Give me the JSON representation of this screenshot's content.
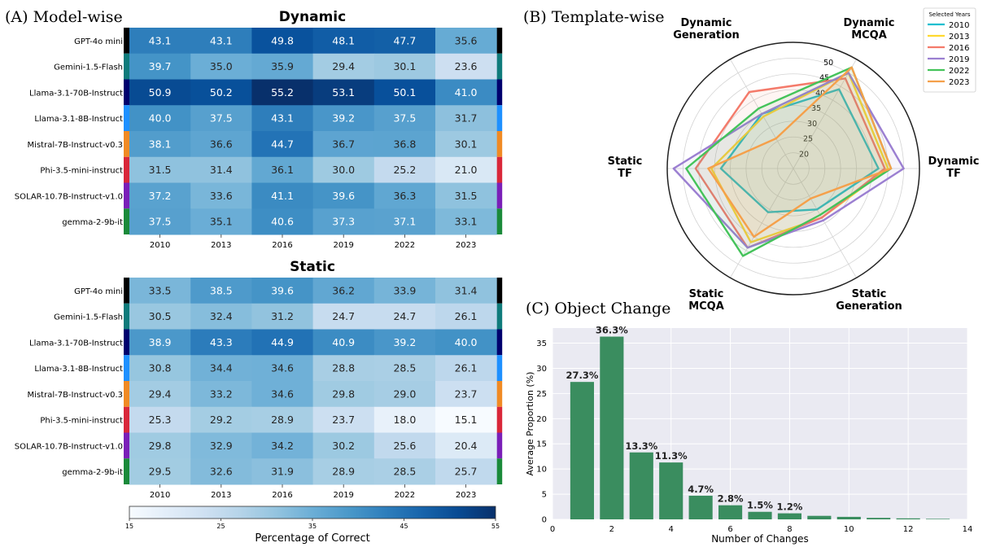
{
  "panels": {
    "a_title": "(A) Model-wise",
    "b_title": "(B) Template-wise",
    "c_title": "(C) Object Change"
  },
  "colors": {
    "model_colors": [
      "#000000",
      "#0f7b7b",
      "#00006e",
      "#1e90ff",
      "#f08a24",
      "#d9273a",
      "#7a1fb8",
      "#1a8a3a"
    ],
    "year_colors": [
      "#17becf",
      "#ffd92f",
      "#f47a6a",
      "#9b7fd1",
      "#44c35a",
      "#f5a04a"
    ],
    "bar_color": "#3a8d5f"
  },
  "chart_data": [
    {
      "type": "heatmap",
      "id": "dynamic",
      "title": "Dynamic",
      "rows": [
        "GPT-4o mini",
        "Gemini-1.5-Flash",
        "Llama-3.1-70B-Instruct",
        "Llama-3.1-8B-Instruct",
        "Mistral-7B-Instruct-v0.3",
        "Phi-3.5-mini-instruct",
        "SOLAR-10.7B-Instruct-v1.0",
        "gemma-2-9b-it"
      ],
      "columns": [
        "2010",
        "2013",
        "2016",
        "2019",
        "2022",
        "2023"
      ],
      "values": [
        [
          "43.1",
          "43.1",
          "49.8",
          "48.1",
          "47.7",
          "35.6"
        ],
        [
          "39.7",
          "35.0",
          "35.9",
          "29.4",
          "30.1",
          "23.6"
        ],
        [
          "50.9",
          "50.2",
          "55.2",
          "53.1",
          "50.1",
          "41.0"
        ],
        [
          "40.0",
          "37.5",
          "43.1",
          "39.2",
          "37.5",
          "31.7"
        ],
        [
          "38.1",
          "36.6",
          "44.7",
          "36.7",
          "36.8",
          "30.1"
        ],
        [
          "31.5",
          "31.4",
          "36.1",
          "30.0",
          "25.2",
          "21.0"
        ],
        [
          "37.2",
          "33.6",
          "41.1",
          "39.6",
          "36.3",
          "31.5"
        ],
        [
          "37.5",
          "35.1",
          "40.6",
          "37.3",
          "37.1",
          "33.1"
        ]
      ]
    },
    {
      "type": "heatmap",
      "id": "static",
      "title": "Static",
      "rows": [
        "GPT-4o mini",
        "Gemini-1.5-Flash",
        "Llama-3.1-70B-Instruct",
        "Llama-3.1-8B-Instruct",
        "Mistral-7B-Instruct-v0.3",
        "Phi-3.5-mini-instruct",
        "SOLAR-10.7B-Instruct-v1.0",
        "gemma-2-9b-it"
      ],
      "columns": [
        "2010",
        "2013",
        "2016",
        "2019",
        "2022",
        "2023"
      ],
      "values": [
        [
          "33.5",
          "38.5",
          "39.6",
          "36.2",
          "33.9",
          "31.4"
        ],
        [
          "30.5",
          "32.4",
          "31.2",
          "24.7",
          "24.7",
          "26.1"
        ],
        [
          "38.9",
          "43.3",
          "44.9",
          "40.9",
          "39.2",
          "40.0"
        ],
        [
          "30.8",
          "34.4",
          "34.6",
          "28.8",
          "28.5",
          "26.1"
        ],
        [
          "29.4",
          "33.2",
          "34.6",
          "29.8",
          "29.0",
          "23.7"
        ],
        [
          "25.3",
          "29.2",
          "28.9",
          "23.7",
          "18.0",
          "15.1"
        ],
        [
          "29.8",
          "32.9",
          "34.2",
          "30.2",
          "25.6",
          "20.4"
        ],
        [
          "29.5",
          "32.6",
          "31.9",
          "28.9",
          "28.5",
          "25.7"
        ]
      ]
    },
    {
      "type": "colorbar",
      "id": "colorbar",
      "label": "Percentage of Correct",
      "range": [
        15,
        55
      ],
      "ticks": [
        "15",
        "25",
        "35",
        "45",
        "55"
      ]
    },
    {
      "type": "radar",
      "id": "template",
      "axes": [
        {
          "line1": "Dynamic",
          "line2": "TF"
        },
        {
          "line1": "Dynamic",
          "line2": "MCQA"
        },
        {
          "line1": "Dynamic",
          "line2": "Generation"
        },
        {
          "line1": "Static",
          "line2": "TF"
        },
        {
          "line1": "Static",
          "line2": "MCQA"
        },
        {
          "line1": "Static",
          "line2": "Generation"
        }
      ],
      "r_range": [
        15,
        55
      ],
      "r_ticks": [
        "20",
        "25",
        "30",
        "35",
        "40",
        "45",
        "50"
      ],
      "legend_title": "Selected Years",
      "series": [
        {
          "name": "2010",
          "values": [
            42,
            44,
            35,
            38,
            31,
            30
          ]
        },
        {
          "name": "2013",
          "values": [
            45,
            50,
            34,
            41,
            42,
            33
          ]
        },
        {
          "name": "2016",
          "values": [
            44,
            48,
            43,
            46,
            44,
            33
          ]
        },
        {
          "name": "2019",
          "values": [
            50,
            50,
            35,
            53,
            44,
            34
          ]
        },
        {
          "name": "2022",
          "values": [
            46,
            52,
            37,
            49,
            47,
            32
          ]
        },
        {
          "name": "2023",
          "values": [
            46,
            52,
            26,
            42,
            40,
            26
          ]
        }
      ]
    },
    {
      "type": "bar",
      "id": "object_change",
      "xlabel": "Number of Changes",
      "ylabel": "Average Proportion (%)",
      "xlim": [
        0,
        14
      ],
      "ylim": [
        0,
        38
      ],
      "xticks": [
        "0",
        "2",
        "4",
        "6",
        "8",
        "10",
        "12",
        "14"
      ],
      "yticks": [
        "0",
        "5",
        "10",
        "15",
        "20",
        "25",
        "30",
        "35"
      ],
      "x": [
        1,
        2,
        3,
        4,
        5,
        6,
        7,
        8,
        9,
        10,
        11,
        12,
        13
      ],
      "values": [
        27.3,
        36.3,
        13.3,
        11.3,
        4.7,
        2.8,
        1.5,
        1.2,
        0.7,
        0.5,
        0.3,
        0.2,
        0.1
      ],
      "labels": [
        "27.3%",
        "36.3%",
        "13.3%",
        "11.3%",
        "4.7%",
        "2.8%",
        "1.5%",
        "1.2%",
        "",
        "",
        "",
        "",
        ""
      ]
    }
  ]
}
